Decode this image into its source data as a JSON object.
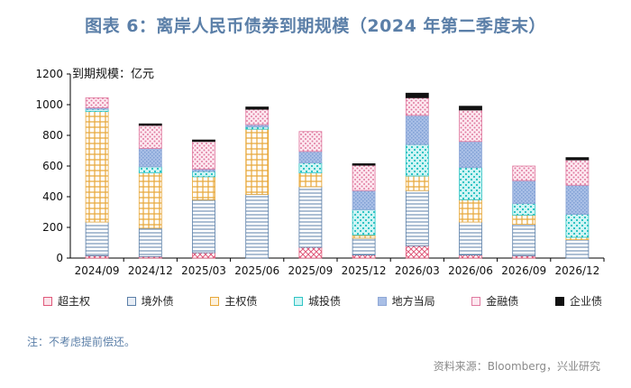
{
  "header": {
    "title": "图表 6：离岸人民币债券到期规模（2024 年第二季度末）"
  },
  "footer": {
    "note": "注：不考虑提前偿还。",
    "source": "资料来源：Bloomberg，兴业研究"
  },
  "colors": {
    "超主权": "#e0597a",
    "境外债": "#5b7fa8",
    "主权债": "#e8a83a",
    "城投债": "#2fc4c4",
    "地方当局": "#8fa8d6",
    "金融债": "#e07aa0",
    "企业债": "#111111"
  },
  "chart_data": {
    "type": "bar",
    "stacked": true,
    "unit_label": "到期规模：亿元",
    "categories": [
      "2024/09",
      "2024/12",
      "2025/03",
      "2025/06",
      "2025/09",
      "2025/12",
      "2026/03",
      "2026/06",
      "2026/09",
      "2026/12"
    ],
    "ylim": [
      0,
      1200
    ],
    "yticks": [
      0,
      200,
      400,
      600,
      800,
      1000,
      1200
    ],
    "series": [
      {
        "name": "超主权",
        "values": [
          15,
          10,
          35,
          0,
          70,
          20,
          80,
          20,
          15,
          0
        ]
      },
      {
        "name": "境外债",
        "values": [
          220,
          185,
          345,
          415,
          395,
          110,
          360,
          215,
          205,
          120
        ]
      },
      {
        "name": "主权债",
        "values": [
          720,
          360,
          150,
          425,
          90,
          20,
          95,
          145,
          60,
          15
        ]
      },
      {
        "name": "城投债",
        "values": [
          15,
          40,
          35,
          15,
          65,
          165,
          205,
          210,
          75,
          150
        ]
      },
      {
        "name": "地方当局",
        "values": [
          10,
          120,
          15,
          15,
          75,
          125,
          190,
          170,
          150,
          190
        ]
      },
      {
        "name": "金融债",
        "values": [
          65,
          150,
          180,
          100,
          130,
          165,
          115,
          205,
          95,
          165
        ]
      },
      {
        "name": "企业债",
        "values": [
          0,
          10,
          10,
          15,
          0,
          10,
          30,
          25,
          0,
          15
        ]
      }
    ]
  }
}
